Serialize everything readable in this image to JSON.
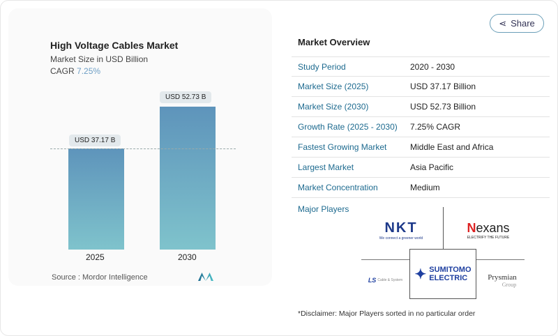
{
  "chart": {
    "title": "High Voltage Cables Market",
    "subtitle": "Market Size in USD Billion",
    "cagr_label": "CAGR",
    "cagr_value": "7.25%",
    "source": "Source :  Mordor Intelligence"
  },
  "chart_data": {
    "type": "bar",
    "categories": [
      "2025",
      "2030"
    ],
    "values": [
      37.17,
      52.73
    ],
    "data_labels": [
      "USD 37.17 B",
      "USD 52.73 B"
    ],
    "title": "High Voltage Cables Market",
    "subtitle": "Market Size in USD Billion",
    "colors": [
      "#5e94bb",
      "#7fc3cc"
    ]
  },
  "share_label": "Share",
  "overview": {
    "title": "Market Overview",
    "rows": [
      {
        "k": "Study Period",
        "v": "2020 - 2030"
      },
      {
        "k": "Market Size (2025)",
        "v": "USD 37.17 Billion"
      },
      {
        "k": "Market Size (2030)",
        "v": "USD 52.73 Billion"
      },
      {
        "k": "Growth Rate (2025 - 2030)",
        "v": "7.25% CAGR"
      },
      {
        "k": "Fastest Growing Market",
        "v": "Middle East and Africa"
      },
      {
        "k": "Largest Market",
        "v": "Asia Pacific"
      },
      {
        "k": "Market Concentration",
        "v": "Medium"
      }
    ],
    "players_label": "Major Players",
    "players": [
      "NKT",
      "Nexans",
      "LS Cable & System",
      "Sumitomo Electric",
      "Prysmian Group"
    ],
    "logo_text": {
      "nkt_tag": "We connect a greener world",
      "nexans_tag": "ELECTRIFY THE FUTURE",
      "sumitomo1": "SUMITOMO",
      "sumitomo2": "ELECTRIC",
      "ls": "LS",
      "ls_tag": "Cable & System",
      "prysmian": "Prysmian",
      "prysmian_tag": "Group"
    },
    "disclaimer": "*Disclaimer: Major Players sorted in no particular order"
  }
}
